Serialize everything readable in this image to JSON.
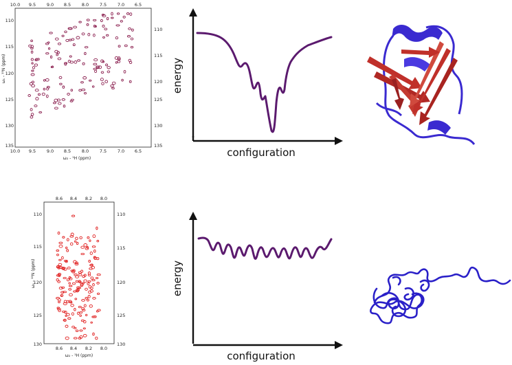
{
  "spectrum_top": {
    "x_ticks": [
      "10.0",
      "9.5",
      "9.0",
      "8.5",
      "8.0",
      "7.5",
      "7.0",
      "6.5"
    ],
    "x_ticks_bottom": [
      "10.0",
      "9.5",
      "9.0",
      "8.5",
      "8.0",
      "7.5",
      "7.0",
      "6.5"
    ],
    "y_ticks": [
      "110",
      "115",
      "120",
      "125",
      "130",
      "135"
    ],
    "xlabel": "ω₂ - ¹H (ppm)",
    "ylabel": "ω₁ - ¹⁵N (ppm)",
    "peak_color": "#8a1e4e"
  },
  "spectrum_bottom": {
    "x_ticks": [
      "8.6",
      "8.4",
      "8.2",
      "8.0"
    ],
    "x_ticks_bottom": [
      "8.6",
      "8.4",
      "8.2",
      "8.0"
    ],
    "y_ticks": [
      "110",
      "115",
      "120",
      "125",
      "130"
    ],
    "xlabel": "ω₂ - ¹H (ppm)",
    "ylabel": "ω₁ - ¹⁵N (ppm)",
    "peak_color": "#e02020"
  },
  "landscape_top": {
    "xlabel": "configuration",
    "ylabel": "energy",
    "curve_color": "#5b1a6e"
  },
  "landscape_bottom": {
    "xlabel": "configuration",
    "ylabel": "energy",
    "curve_color": "#5b1a6e"
  },
  "structure_top": {
    "helix_color": "#3a2ad0",
    "sheet_color": "#c0302a"
  },
  "structure_bottom": {
    "coil_color": "#2a20c8"
  }
}
